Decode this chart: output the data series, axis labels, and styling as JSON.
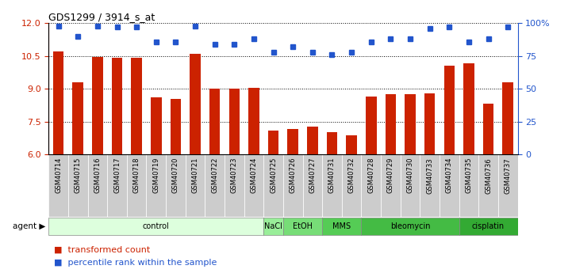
{
  "title": "GDS1299 / 3914_s_at",
  "samples": [
    "GSM40714",
    "GSM40715",
    "GSM40716",
    "GSM40717",
    "GSM40718",
    "GSM40719",
    "GSM40720",
    "GSM40721",
    "GSM40722",
    "GSM40723",
    "GSM40724",
    "GSM40725",
    "GSM40726",
    "GSM40727",
    "GSM40731",
    "GSM40732",
    "GSM40728",
    "GSM40729",
    "GSM40730",
    "GSM40733",
    "GSM40734",
    "GSM40735",
    "GSM40736",
    "GSM40737"
  ],
  "transformed_count": [
    10.7,
    9.3,
    10.45,
    10.4,
    10.4,
    8.6,
    8.55,
    10.6,
    9.0,
    9.0,
    9.05,
    7.1,
    7.15,
    7.25,
    7.0,
    6.85,
    8.65,
    8.75,
    8.75,
    8.8,
    10.05,
    10.15,
    8.3,
    9.3
  ],
  "percentile_rank": [
    98,
    90,
    98,
    97,
    97,
    86,
    86,
    98,
    84,
    84,
    88,
    78,
    82,
    78,
    76,
    78,
    86,
    88,
    88,
    96,
    97,
    86,
    88,
    97
  ],
  "ylim_left": [
    6,
    12
  ],
  "ylim_right": [
    0,
    100
  ],
  "yticks_left": [
    6,
    7.5,
    9,
    10.5,
    12
  ],
  "yticks_right": [
    0,
    25,
    50,
    75,
    100
  ],
  "bar_color": "#cc2200",
  "dot_color": "#2255cc",
  "tick_box_color": "#cccccc",
  "agents": [
    {
      "label": "control",
      "start": 0,
      "end": 11,
      "color": "#ddffdd"
    },
    {
      "label": "NaCl",
      "start": 11,
      "end": 12,
      "color": "#99ee99"
    },
    {
      "label": "EtOH",
      "start": 12,
      "end": 14,
      "color": "#77dd77"
    },
    {
      "label": "MMS",
      "start": 14,
      "end": 16,
      "color": "#55cc55"
    },
    {
      "label": "bleomycin",
      "start": 16,
      "end": 21,
      "color": "#44bb44"
    },
    {
      "label": "cisplatin",
      "start": 21,
      "end": 24,
      "color": "#33aa33"
    }
  ]
}
